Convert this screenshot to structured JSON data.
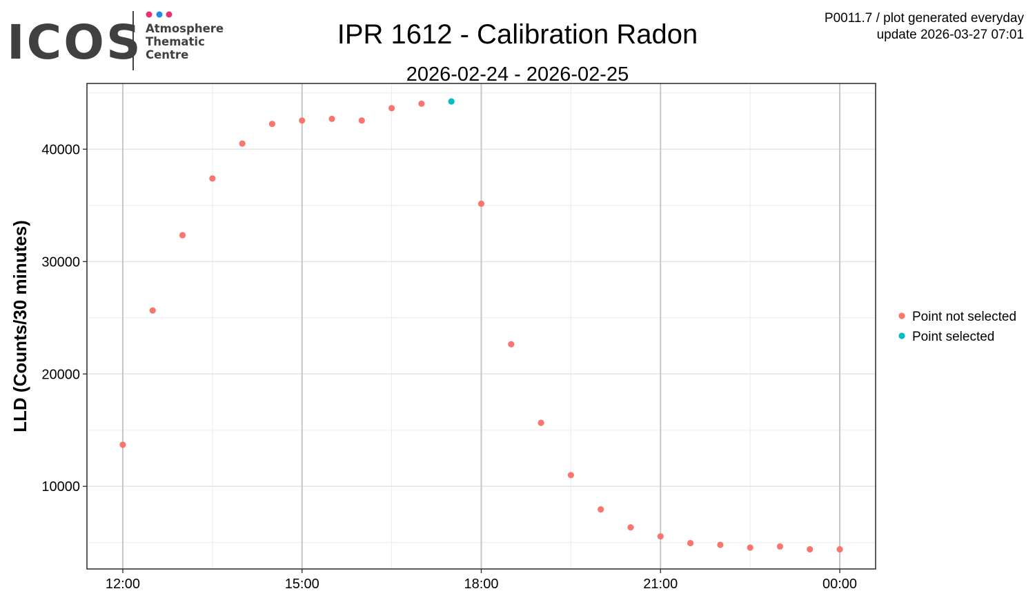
{
  "logo": {
    "wordmark": "ICOS",
    "line1": "Atmosphere",
    "line2": "Thematic",
    "line3": "Centre",
    "dot_colors": [
      "#e8336d",
      "#1a8fe3",
      "#e8336d"
    ],
    "text_color": "#404040"
  },
  "meta": {
    "line1": "P0011.7 / plot generated everyday",
    "line2": "update  2026-03-27 07:01"
  },
  "chart_data": {
    "type": "scatter",
    "title": "IPR 1612 - Calibration Radon",
    "subtitle": "2026-02-24 - 2026-02-25",
    "xlabel": "",
    "ylabel": "LLD (Counts/30 minutes)",
    "x_tick_labels": [
      "12:00",
      "15:00",
      "18:00",
      "21:00",
      "00:00"
    ],
    "y_ticks": [
      10000,
      20000,
      30000,
      40000
    ],
    "xlim_hours": [
      11.4,
      24.6
    ],
    "ylim": [
      2650,
      45850
    ],
    "grid": true,
    "legend_position": "right",
    "series": [
      {
        "name": "Point not selected",
        "color": "#f8766d",
        "points": [
          {
            "x": "12:00",
            "y": 13700
          },
          {
            "x": "12:30",
            "y": 25650
          },
          {
            "x": "13:00",
            "y": 32350
          },
          {
            "x": "13:30",
            "y": 37400
          },
          {
            "x": "14:00",
            "y": 40500
          },
          {
            "x": "14:30",
            "y": 42250
          },
          {
            "x": "15:00",
            "y": 42550
          },
          {
            "x": "15:30",
            "y": 42700
          },
          {
            "x": "16:00",
            "y": 42550
          },
          {
            "x": "16:30",
            "y": 43650
          },
          {
            "x": "17:00",
            "y": 44050
          },
          {
            "x": "18:00",
            "y": 35150
          },
          {
            "x": "18:30",
            "y": 22650
          },
          {
            "x": "19:00",
            "y": 15650
          },
          {
            "x": "19:30",
            "y": 11000
          },
          {
            "x": "20:00",
            "y": 7950
          },
          {
            "x": "20:30",
            "y": 6350
          },
          {
            "x": "21:00",
            "y": 5550
          },
          {
            "x": "21:30",
            "y": 4950
          },
          {
            "x": "22:00",
            "y": 4800
          },
          {
            "x": "22:30",
            "y": 4550
          },
          {
            "x": "23:00",
            "y": 4650
          },
          {
            "x": "23:30",
            "y": 4400
          },
          {
            "x": "00:00",
            "y": 4400
          }
        ]
      },
      {
        "name": "Point selected",
        "color": "#00bfc4",
        "points": [
          {
            "x": "17:30",
            "y": 44250
          }
        ]
      }
    ]
  }
}
